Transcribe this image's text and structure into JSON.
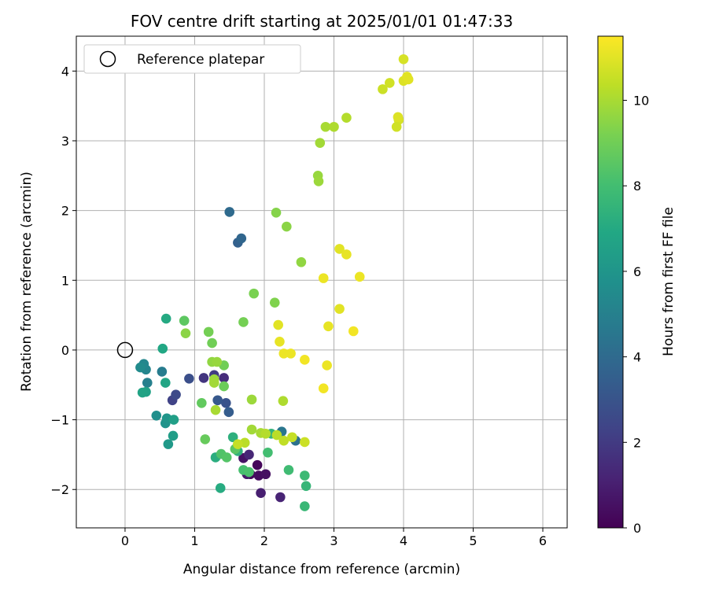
{
  "chart_data": {
    "type": "scatter",
    "title": "FOV centre drift starting at 2025/01/01 01:47:33",
    "xlabel": "Angular distance from reference (arcmin)",
    "ylabel": "Rotation from reference (arcmin)",
    "xlim": [
      -0.7,
      6.35
    ],
    "ylim": [
      -2.55,
      4.5
    ],
    "xticks": [
      0,
      1,
      2,
      3,
      4,
      5,
      6
    ],
    "yticks": [
      -2,
      -1,
      0,
      1,
      2,
      3,
      4
    ],
    "grid": true,
    "legend": {
      "label": "Reference platepar",
      "placement": "top-left"
    },
    "reference_point": {
      "x": 0,
      "y": 0
    },
    "colorbar": {
      "label": "Hours from first FF file",
      "range": [
        0,
        11.5
      ],
      "ticks": [
        0,
        2,
        4,
        6,
        8,
        10
      ],
      "colormap": "viridis"
    },
    "points": [
      {
        "x": 1.9,
        "y": -1.65,
        "t": 0.2
      },
      {
        "x": 1.8,
        "y": -1.78,
        "t": 0.3
      },
      {
        "x": 1.92,
        "y": -1.8,
        "t": 0.4
      },
      {
        "x": 2.02,
        "y": -1.78,
        "t": 0.5
      },
      {
        "x": 1.7,
        "y": -1.55,
        "t": 0.6
      },
      {
        "x": 1.75,
        "y": -1.78,
        "t": 0.8
      },
      {
        "x": 1.95,
        "y": -2.05,
        "t": 1.0
      },
      {
        "x": 2.23,
        "y": -2.11,
        "t": 1.2
      },
      {
        "x": 1.78,
        "y": -1.5,
        "t": 1.3
      },
      {
        "x": 1.42,
        "y": -0.4,
        "t": 1.5
      },
      {
        "x": 1.13,
        "y": -0.4,
        "t": 1.8
      },
      {
        "x": 1.28,
        "y": -0.36,
        "t": 2.0
      },
      {
        "x": 0.68,
        "y": -0.72,
        "t": 2.3
      },
      {
        "x": 0.73,
        "y": -0.64,
        "t": 2.6
      },
      {
        "x": 0.92,
        "y": -0.41,
        "t": 2.8
      },
      {
        "x": 1.45,
        "y": -0.76,
        "t": 3.0
      },
      {
        "x": 1.33,
        "y": -0.72,
        "t": 3.2
      },
      {
        "x": 1.49,
        "y": -0.89,
        "t": 3.4
      },
      {
        "x": 1.62,
        "y": 1.54,
        "t": 3.6
      },
      {
        "x": 1.67,
        "y": 1.6,
        "t": 3.8
      },
      {
        "x": 1.5,
        "y": 1.98,
        "t": 4.0
      },
      {
        "x": 2.45,
        "y": -1.3,
        "t": 4.3
      },
      {
        "x": 2.25,
        "y": -1.17,
        "t": 4.5
      },
      {
        "x": 0.53,
        "y": -0.31,
        "t": 4.8
      },
      {
        "x": 0.32,
        "y": -0.47,
        "t": 5.0
      },
      {
        "x": 0.3,
        "y": -0.28,
        "t": 5.2
      },
      {
        "x": 0.27,
        "y": -0.2,
        "t": 5.3
      },
      {
        "x": 0.22,
        "y": -0.25,
        "t": 5.5
      },
      {
        "x": 0.45,
        "y": -0.94,
        "t": 5.7
      },
      {
        "x": 0.58,
        "y": -1.05,
        "t": 5.9
      },
      {
        "x": 0.6,
        "y": -0.98,
        "t": 6.0
      },
      {
        "x": 0.62,
        "y": -1.35,
        "t": 6.2
      },
      {
        "x": 0.69,
        "y": -1.23,
        "t": 6.4
      },
      {
        "x": 0.7,
        "y": -1.0,
        "t": 6.5
      },
      {
        "x": 0.3,
        "y": -0.6,
        "t": 6.6
      },
      {
        "x": 0.25,
        "y": -0.61,
        "t": 6.7
      },
      {
        "x": 0.58,
        "y": -0.47,
        "t": 6.8
      },
      {
        "x": 0.54,
        "y": 0.02,
        "t": 6.9
      },
      {
        "x": 0.59,
        "y": 0.45,
        "t": 7.0
      },
      {
        "x": 1.37,
        "y": -1.98,
        "t": 7.1
      },
      {
        "x": 1.3,
        "y": -1.54,
        "t": 7.2
      },
      {
        "x": 1.55,
        "y": -1.25,
        "t": 7.3
      },
      {
        "x": 1.62,
        "y": -1.45,
        "t": 7.4
      },
      {
        "x": 2.1,
        "y": -1.2,
        "t": 7.5
      },
      {
        "x": 2.6,
        "y": -1.95,
        "t": 7.6
      },
      {
        "x": 2.58,
        "y": -2.24,
        "t": 7.7
      },
      {
        "x": 2.58,
        "y": -1.8,
        "t": 7.8
      },
      {
        "x": 2.35,
        "y": -1.72,
        "t": 7.9
      },
      {
        "x": 2.05,
        "y": -1.47,
        "t": 8.0
      },
      {
        "x": 1.7,
        "y": -1.72,
        "t": 8.1
      },
      {
        "x": 1.78,
        "y": -1.75,
        "t": 8.2
      },
      {
        "x": 1.38,
        "y": -1.49,
        "t": 8.3
      },
      {
        "x": 1.46,
        "y": -1.54,
        "t": 8.4
      },
      {
        "x": 1.58,
        "y": -1.42,
        "t": 8.5
      },
      {
        "x": 0.85,
        "y": 0.42,
        "t": 8.6
      },
      {
        "x": 1.1,
        "y": -0.76,
        "t": 8.7
      },
      {
        "x": 1.15,
        "y": -1.28,
        "t": 8.8
      },
      {
        "x": 1.42,
        "y": -0.52,
        "t": 8.9
      },
      {
        "x": 1.42,
        "y": -0.22,
        "t": 9.0
      },
      {
        "x": 1.7,
        "y": 0.4,
        "t": 9.1
      },
      {
        "x": 1.85,
        "y": 0.81,
        "t": 9.2
      },
      {
        "x": 2.15,
        "y": 0.68,
        "t": 9.3
      },
      {
        "x": 2.17,
        "y": 1.97,
        "t": 9.4
      },
      {
        "x": 2.32,
        "y": 1.77,
        "t": 9.5
      },
      {
        "x": 2.53,
        "y": 1.26,
        "t": 9.6
      },
      {
        "x": 2.77,
        "y": 2.5,
        "t": 9.7
      },
      {
        "x": 2.78,
        "y": 2.42,
        "t": 9.8
      },
      {
        "x": 2.8,
        "y": 2.97,
        "t": 9.9
      },
      {
        "x": 2.88,
        "y": 3.2,
        "t": 10.0
      },
      {
        "x": 3.0,
        "y": 3.2,
        "t": 10.1
      },
      {
        "x": 3.18,
        "y": 3.33,
        "t": 10.2
      },
      {
        "x": 1.2,
        "y": 0.26,
        "t": 9.1
      },
      {
        "x": 1.25,
        "y": 0.1,
        "t": 9.0
      },
      {
        "x": 0.87,
        "y": 0.24,
        "t": 9.5
      },
      {
        "x": 1.25,
        "y": -0.17,
        "t": 9.6
      },
      {
        "x": 1.32,
        "y": -0.17,
        "t": 9.7
      },
      {
        "x": 1.28,
        "y": -0.42,
        "t": 9.8
      },
      {
        "x": 1.28,
        "y": -0.47,
        "t": 9.9
      },
      {
        "x": 1.3,
        "y": -0.86,
        "t": 10.0
      },
      {
        "x": 1.82,
        "y": -0.71,
        "t": 9.8
      },
      {
        "x": 2.27,
        "y": -0.73,
        "t": 10.1
      },
      {
        "x": 1.82,
        "y": -1.14,
        "t": 9.9
      },
      {
        "x": 1.95,
        "y": -1.19,
        "t": 10.0
      },
      {
        "x": 2.02,
        "y": -1.2,
        "t": 10.2
      },
      {
        "x": 2.18,
        "y": -1.22,
        "t": 10.3
      },
      {
        "x": 2.28,
        "y": -1.3,
        "t": 10.4
      },
      {
        "x": 2.4,
        "y": -1.25,
        "t": 10.5
      },
      {
        "x": 2.58,
        "y": -1.32,
        "t": 10.6
      },
      {
        "x": 1.72,
        "y": -1.33,
        "t": 10.3
      },
      {
        "x": 1.62,
        "y": -1.35,
        "t": 10.5
      },
      {
        "x": 3.7,
        "y": 3.74,
        "t": 10.6
      },
      {
        "x": 3.8,
        "y": 3.83,
        "t": 10.7
      },
      {
        "x": 4.0,
        "y": 4.17,
        "t": 10.8
      },
      {
        "x": 4.0,
        "y": 3.86,
        "t": 10.9
      },
      {
        "x": 4.05,
        "y": 3.92,
        "t": 11.0
      },
      {
        "x": 4.07,
        "y": 3.88,
        "t": 11.0
      },
      {
        "x": 3.93,
        "y": 3.3,
        "t": 10.8
      },
      {
        "x": 3.92,
        "y": 3.34,
        "t": 10.9
      },
      {
        "x": 3.9,
        "y": 3.2,
        "t": 10.7
      },
      {
        "x": 2.2,
        "y": 0.36,
        "t": 11.0
      },
      {
        "x": 2.22,
        "y": 0.12,
        "t": 11.1
      },
      {
        "x": 2.28,
        "y": -0.05,
        "t": 11.2
      },
      {
        "x": 2.38,
        "y": -0.05,
        "t": 11.2
      },
      {
        "x": 2.58,
        "y": -0.14,
        "t": 11.3
      },
      {
        "x": 2.85,
        "y": -0.55,
        "t": 11.3
      },
      {
        "x": 2.9,
        "y": -0.22,
        "t": 11.2
      },
      {
        "x": 2.92,
        "y": 0.34,
        "t": 11.1
      },
      {
        "x": 3.08,
        "y": 0.59,
        "t": 11.0
      },
      {
        "x": 3.28,
        "y": 0.27,
        "t": 11.3
      },
      {
        "x": 2.85,
        "y": 1.03,
        "t": 11.2
      },
      {
        "x": 3.08,
        "y": 1.45,
        "t": 11.0
      },
      {
        "x": 3.18,
        "y": 1.37,
        "t": 11.1
      },
      {
        "x": 3.37,
        "y": 1.05,
        "t": 11.2
      }
    ]
  }
}
